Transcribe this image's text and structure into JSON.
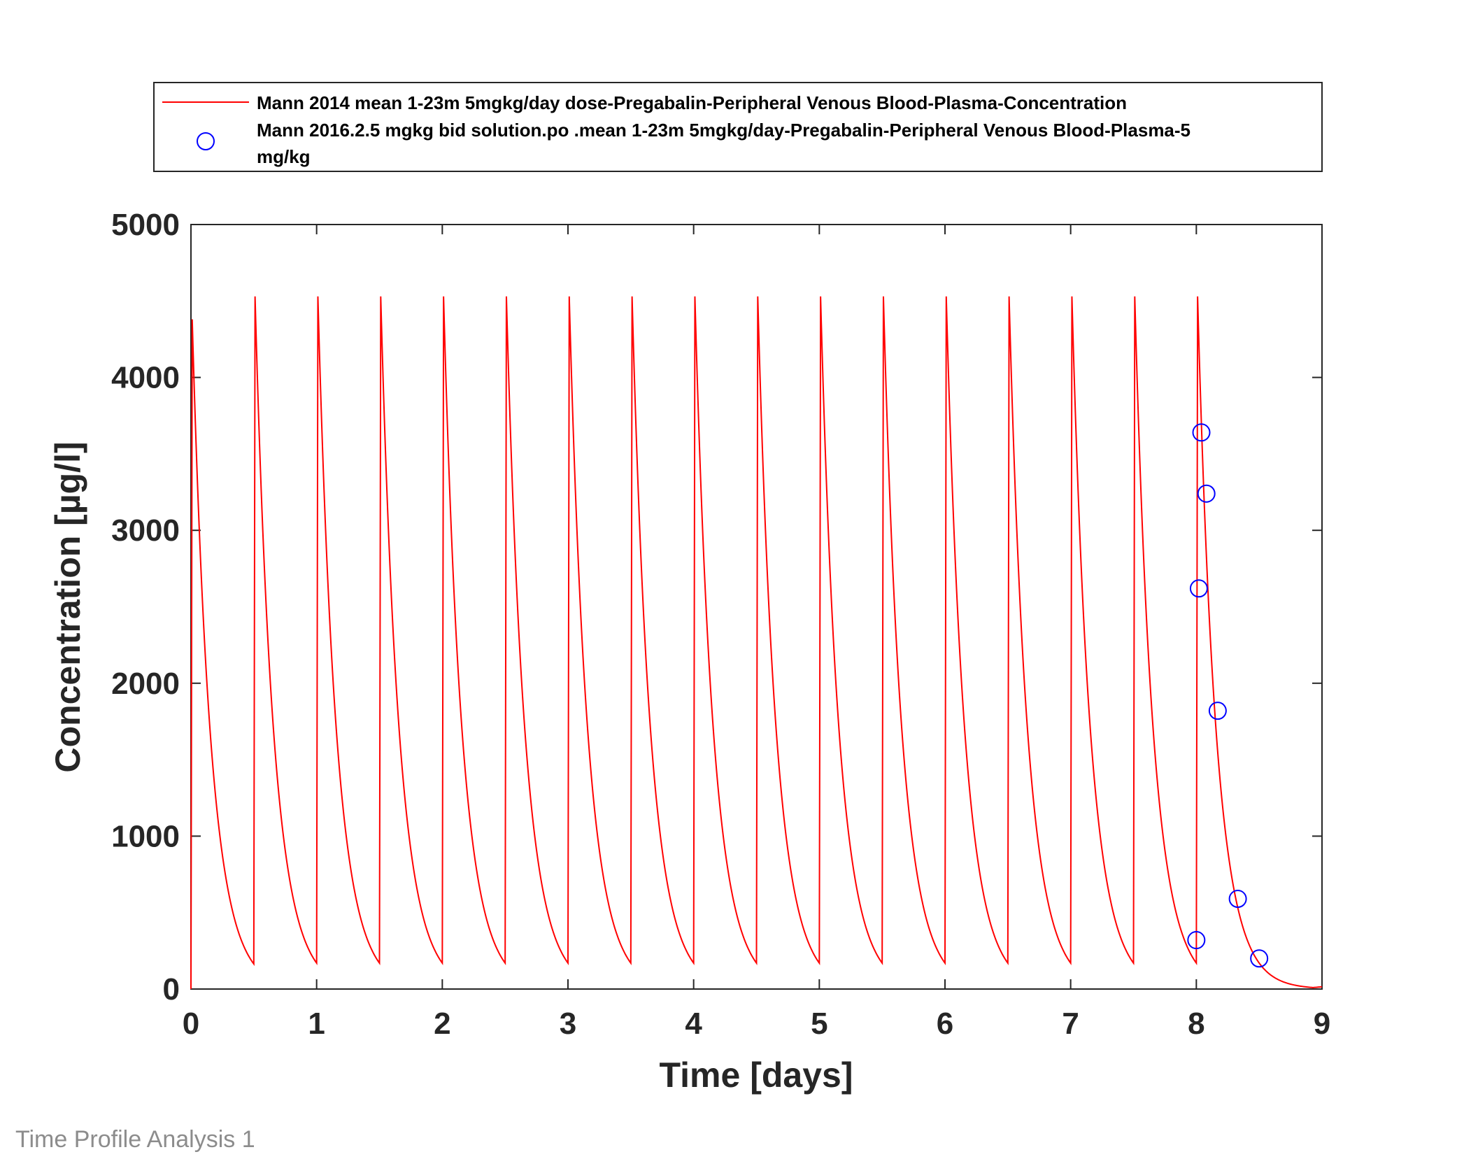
{
  "footer": {
    "label": "Time Profile Analysis 1"
  },
  "chart_data": {
    "type": "line",
    "xlabel": "Time [days]",
    "ylabel": "Concentration [µg/l]",
    "xlim": [
      0,
      9
    ],
    "ylim": [
      0,
      5000
    ],
    "xticks": [
      "0",
      "1",
      "2",
      "3",
      "4",
      "5",
      "6",
      "7",
      "8",
      "9"
    ],
    "yticks": [
      "0",
      "1000",
      "2000",
      "3000",
      "4000",
      "5000"
    ],
    "grid": false,
    "legend_position": "top-outside",
    "series": [
      {
        "name": "Mann 2014 mean 1-23m 5mgkg/day dose-Pregabalin-Peripheral Venous Blood-Plasma-Concentration",
        "kind": "line",
        "color": "#ff0000",
        "dose_times": [
          0,
          0.5,
          1,
          1.5,
          2,
          2.5,
          3,
          3.5,
          4,
          4.5,
          5,
          5.5,
          6,
          6.5,
          7,
          7.5,
          8
        ],
        "peak_first": 4380,
        "peak": 4530,
        "trough": 170,
        "end_value": 15
      },
      {
        "name_lines": [
          "Mann 2016.2.5 mgkg bid solution.po .mean 1-23m 5mgkg/day-Pregabalin-Peripheral Venous Blood-Plasma-5",
          "mg/kg"
        ],
        "kind": "scatter",
        "marker": "circle",
        "color": "#0000ff",
        "x": [
          8.0,
          8.02,
          8.04,
          8.08,
          8.17,
          8.33,
          8.5
        ],
        "y": [
          320,
          2620,
          3640,
          3240,
          1820,
          590,
          200
        ]
      }
    ]
  }
}
